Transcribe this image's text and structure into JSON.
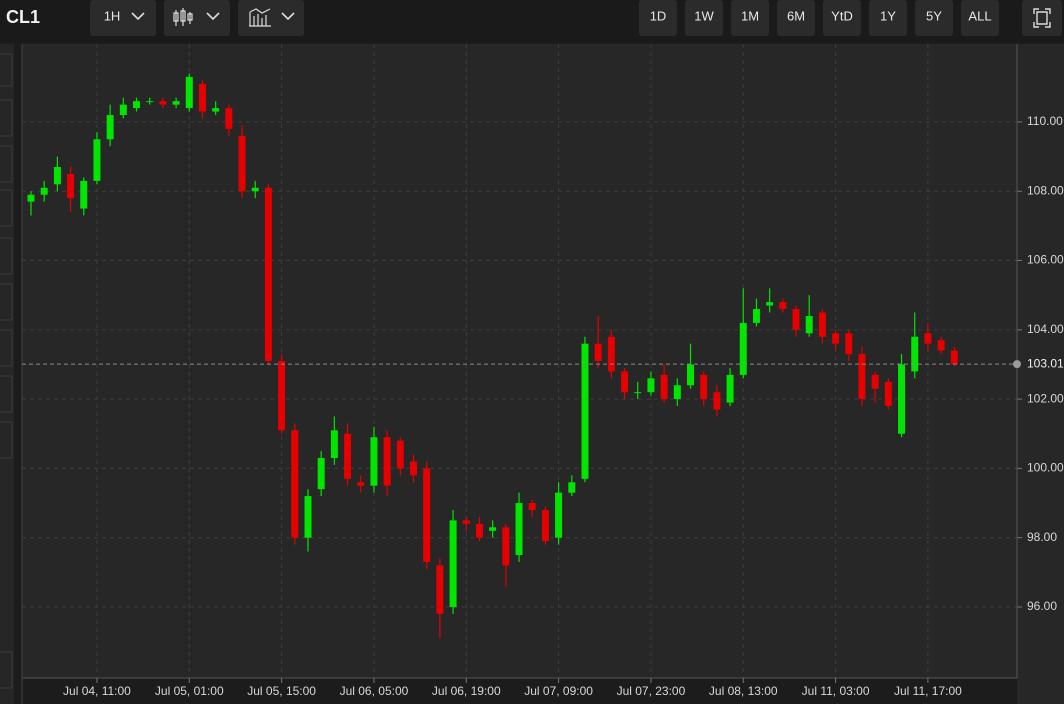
{
  "toolbar": {
    "symbol": "CL1",
    "interval": "1H",
    "ranges": [
      "1D",
      "1W",
      "1M",
      "6M",
      "YtD",
      "1Y",
      "5Y",
      "ALL"
    ]
  },
  "chart_data": {
    "type": "candlestick",
    "categories": [
      null,
      null,
      null,
      null,
      null,
      "Jul 04, 11:00",
      null,
      null,
      null,
      null,
      null,
      null,
      "Jul 05, 01:00",
      null,
      null,
      null,
      null,
      null,
      null,
      "Jul 05, 15:00",
      null,
      null,
      null,
      null,
      null,
      null,
      "Jul 06, 05:00",
      null,
      null,
      null,
      null,
      null,
      null,
      "Jul 06, 19:00",
      null,
      null,
      null,
      null,
      null,
      null,
      "Jul 07, 09:00",
      null,
      null,
      null,
      null,
      null,
      null,
      "Jul 07, 23:00",
      null,
      null,
      null,
      null,
      null,
      null,
      "Jul 08, 13:00",
      null,
      null,
      null,
      null,
      null,
      null,
      "Jul 11, 03:00",
      null,
      null,
      null,
      null,
      null,
      null,
      "Jul 11, 17:00",
      null,
      null
    ],
    "open": [
      107.7,
      107.9,
      108.2,
      108.5,
      107.5,
      108.3,
      109.5,
      110.2,
      110.4,
      110.6,
      110.6,
      110.5,
      110.4,
      111.1,
      110.3,
      110.4,
      109.6,
      108.0,
      108.1,
      103.1,
      101.1,
      98.0,
      99.4,
      100.3,
      101.0,
      99.6,
      99.5,
      100.9,
      100.8,
      100.2,
      100.0,
      97.2,
      96.0,
      98.5,
      98.4,
      98.2,
      98.3,
      97.5,
      99.0,
      98.8,
      98.0,
      99.3,
      99.7,
      103.6,
      103.8,
      102.8,
      102.2,
      102.2,
      102.7,
      102.0,
      102.4,
      102.7,
      102.2,
      101.9,
      102.7,
      104.2,
      104.7,
      104.8,
      104.6,
      103.9,
      104.5,
      103.9,
      103.9,
      103.3,
      102.7,
      102.5,
      101.0,
      102.8,
      103.9,
      103.7,
      103.4
    ],
    "high": [
      108.0,
      108.3,
      109.0,
      108.7,
      108.4,
      109.7,
      110.5,
      110.7,
      110.7,
      110.7,
      110.7,
      110.7,
      111.4,
      111.2,
      110.6,
      110.5,
      109.9,
      108.3,
      108.2,
      103.3,
      101.3,
      99.4,
      100.5,
      101.5,
      101.3,
      99.8,
      101.2,
      101.1,
      100.9,
      100.4,
      100.2,
      97.4,
      98.8,
      98.6,
      98.6,
      98.5,
      98.4,
      99.3,
      99.1,
      98.9,
      99.6,
      99.8,
      103.8,
      104.4,
      104.0,
      102.9,
      102.5,
      102.8,
      103.0,
      102.6,
      103.6,
      102.8,
      102.4,
      102.9,
      105.2,
      104.9,
      105.2,
      104.9,
      104.7,
      105.0,
      104.6,
      104.0,
      104.0,
      103.5,
      102.8,
      102.6,
      103.3,
      104.5,
      104.2,
      103.8,
      103.5
    ],
    "low": [
      107.3,
      107.7,
      108.0,
      107.4,
      107.3,
      108.2,
      109.3,
      110.1,
      110.3,
      110.5,
      110.4,
      110.4,
      110.3,
      110.1,
      110.2,
      109.6,
      107.8,
      107.8,
      103.0,
      101.0,
      97.8,
      97.6,
      99.2,
      100.1,
      99.5,
      99.3,
      99.3,
      99.2,
      99.8,
      99.6,
      97.1,
      95.1,
      95.8,
      98.2,
      97.9,
      98.0,
      96.6,
      97.3,
      98.6,
      97.8,
      97.8,
      99.2,
      99.6,
      102.9,
      102.6,
      102.0,
      102.0,
      102.1,
      101.9,
      101.8,
      102.3,
      101.8,
      101.5,
      101.8,
      102.6,
      104.1,
      104.5,
      104.5,
      103.8,
      103.8,
      103.6,
      103.4,
      103.1,
      101.8,
      101.9,
      101.7,
      100.9,
      102.6,
      103.4,
      103.3,
      102.95
    ],
    "close": [
      107.9,
      108.1,
      108.7,
      107.8,
      108.3,
      109.5,
      110.2,
      110.5,
      110.6,
      110.6,
      110.5,
      110.6,
      111.3,
      110.3,
      110.4,
      109.8,
      108.0,
      108.1,
      103.1,
      101.1,
      98.0,
      99.2,
      100.3,
      101.1,
      99.7,
      99.5,
      100.9,
      99.5,
      100.0,
      99.8,
      97.3,
      95.8,
      98.5,
      98.4,
      98.0,
      98.3,
      97.2,
      99.0,
      98.8,
      97.9,
      99.3,
      99.6,
      103.6,
      103.1,
      102.8,
      102.2,
      102.2,
      102.6,
      102.0,
      102.4,
      103.0,
      102.0,
      101.7,
      102.7,
      104.2,
      104.6,
      104.8,
      104.6,
      104.0,
      104.4,
      103.8,
      103.6,
      103.3,
      102.0,
      102.3,
      101.8,
      103.0,
      103.8,
      103.6,
      103.4,
      103.01
    ],
    "up_color": "#00e600",
    "down_color": "#e60000",
    "last_price": 103.01,
    "ylim": [
      93.95,
      112.25
    ],
    "yticks": [
      {
        "value": 96,
        "label": "96.00"
      },
      {
        "value": 98,
        "label": "98.00"
      },
      {
        "value": 100,
        "label": "100.00"
      },
      {
        "value": 102,
        "label": "102.00"
      },
      {
        "value": 104,
        "label": "104.00"
      },
      {
        "value": 106,
        "label": "106.00"
      },
      {
        "value": 108,
        "label": "108.00"
      },
      {
        "value": 110,
        "label": "110.00"
      }
    ],
    "grid": true
  }
}
